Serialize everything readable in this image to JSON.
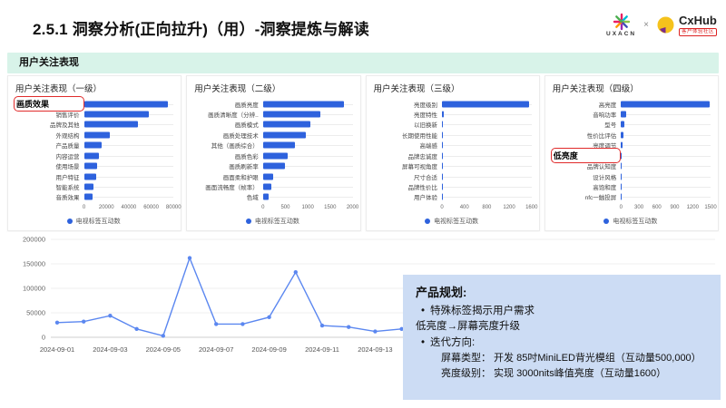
{
  "slide": {
    "title": "2.5.1 洞察分析(正向拉升)（用）-洞察提炼与解读",
    "logos": {
      "uxacn": "UXACN",
      "separator": "×",
      "cxhub": "CxHub",
      "cxhub_sub": "客户体验社区"
    }
  },
  "section_banner": "用户关注表现",
  "colors": {
    "bar": "#2e62dd",
    "line": "#5b87f0",
    "banner_bg": "#d8f3e9",
    "box_bg": "#ccdcf4",
    "highlight_red": "#e02b2b"
  },
  "chart_data": [
    {
      "type": "bar",
      "orientation": "horizontal",
      "title": "用户关注表现（一级）",
      "legend": "电视标签互动数",
      "categories": [
        "画质效果",
        "销售评价",
        "品牌及其他",
        "外观结构",
        "产品质量",
        "内容运营",
        "使用场景",
        "用户特征",
        "智能系统",
        "音质效果"
      ],
      "values": [
        75000,
        58000,
        48000,
        23000,
        16000,
        13000,
        12000,
        11000,
        8500,
        8000
      ],
      "xlim": [
        0,
        80000
      ],
      "xticks": [
        "0",
        "20000",
        "40000",
        "60000",
        "80000"
      ],
      "highlight_index": 0
    },
    {
      "type": "bar",
      "orientation": "horizontal",
      "title": "用户关注表现（二级）",
      "legend": "电视标签互动数",
      "categories": [
        "画质亮度",
        "画质清晰度（分辨..",
        "画质模式",
        "画质处理技术",
        "其他（画质综合）",
        "画质色彩",
        "画质刷新率",
        "画面柔和护眼",
        "画面流畅度（帧率）",
        "色域"
      ],
      "values": [
        1800,
        1280,
        1050,
        960,
        710,
        550,
        500,
        230,
        180,
        130
      ],
      "xlim": [
        0,
        2000
      ],
      "xticks": [
        "0",
        "500",
        "1000",
        "1500",
        "2000"
      ],
      "highlight_index": null
    },
    {
      "type": "bar",
      "orientation": "horizontal",
      "title": "用户关注表现（三级）",
      "legend": "电视标签互动数",
      "categories": [
        "亮度级别",
        "亮度特性",
        "以旧换新",
        "长期使用性能",
        "高端感",
        "品牌忠诚度",
        "屏幕可视角度",
        "尺寸合适",
        "品牌性价比",
        "用户体验"
      ],
      "values": [
        1550,
        30,
        10,
        8,
        6,
        5,
        4,
        4,
        3,
        2
      ],
      "xlim": [
        0,
        1600
      ],
      "xticks": [
        "0",
        "400",
        "800",
        "1200",
        "1600"
      ],
      "highlight_index": null
    },
    {
      "type": "bar",
      "orientation": "horizontal",
      "title": "用户关注表现（四级）",
      "legend": "电视标签互动数",
      "categories": [
        "高亮度",
        "音响功率",
        "型号",
        "性价比评估",
        "亮度调节",
        "低亮度",
        "品牌认知度",
        "设计风格",
        "高饱和度",
        "nfc一触投屏"
      ],
      "values": [
        1480,
        85,
        60,
        45,
        25,
        15,
        12,
        8,
        6,
        5
      ],
      "xlim": [
        0,
        1500
      ],
      "xticks": [
        "0",
        "300",
        "600",
        "900",
        "1200",
        "1500"
      ],
      "highlight_index": 5
    },
    {
      "type": "line",
      "title": "",
      "x": [
        "2024-09-01",
        "2024-09-02",
        "2024-09-03",
        "2024-09-04",
        "2024-09-05",
        "2024-09-06",
        "2024-09-07",
        "2024-09-08",
        "2024-09-09",
        "2024-09-10",
        "2024-09-11",
        "2024-09-12",
        "2024-09-13",
        "2024-09-14"
      ],
      "values": [
        30000,
        32000,
        44000,
        17000,
        3000,
        162000,
        27000,
        27000,
        41000,
        133000,
        24000,
        21000,
        12000,
        17000
      ],
      "ylim": [
        0,
        200000
      ],
      "yticks": [
        0,
        50000,
        100000,
        150000,
        200000
      ],
      "xtick_label_every": 2
    }
  ],
  "product_box": {
    "title": "产品规划:",
    "bullet1": "特殊标签揭示用户需求",
    "line2": "低亮度→屏幕亮度升级",
    "bullet2": "迭代方向:",
    "detail1": "屏幕类型： 开发 85吋MiniLED背光模组（互动量500,000）",
    "detail2": "亮度级别： 实现 3000nits峰值亮度（互动量1600）"
  }
}
